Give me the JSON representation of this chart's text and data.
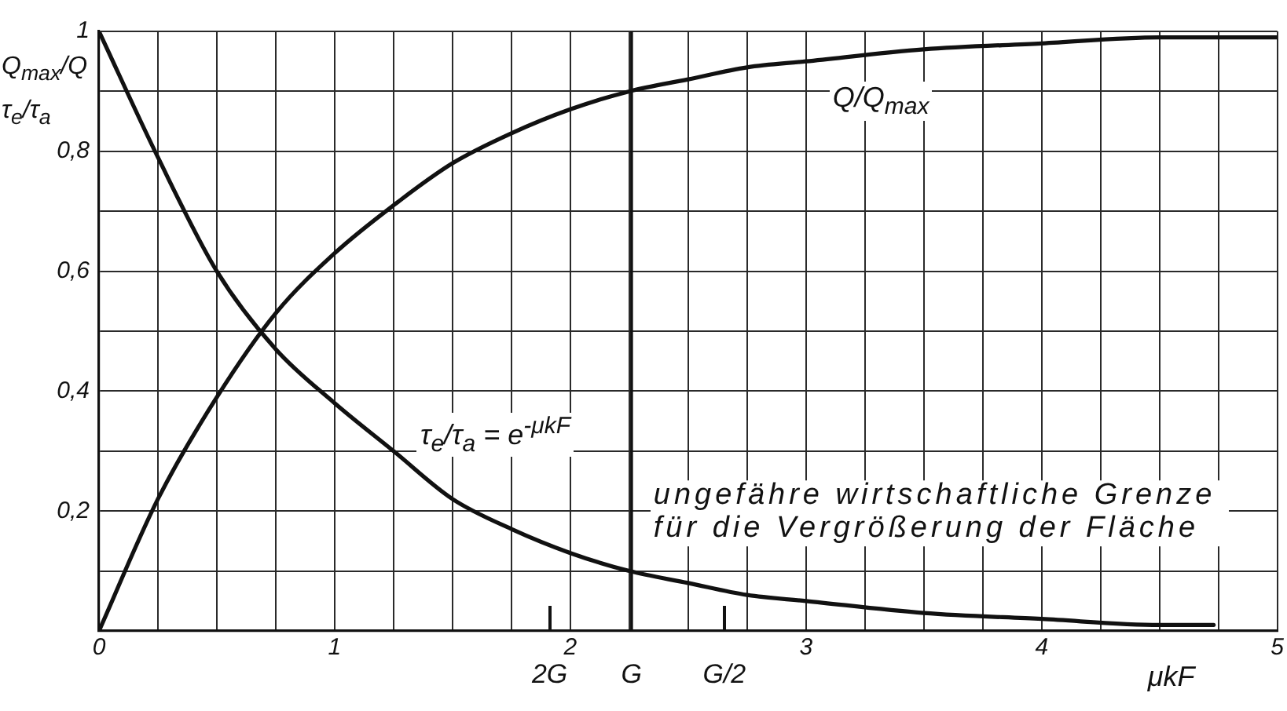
{
  "chart_data": {
    "type": "line",
    "series": [
      {
        "name": "Q/Q$_{max}$",
        "color": "#111111",
        "x": [
          0,
          0.25,
          0.5,
          0.75,
          1,
          1.25,
          1.5,
          1.75,
          2,
          2.25,
          2.5,
          2.75,
          3,
          3.5,
          4,
          4.5,
          5
        ],
        "values": [
          0,
          0.22,
          0.39,
          0.53,
          0.63,
          0.71,
          0.78,
          0.83,
          0.87,
          0.9,
          0.92,
          0.94,
          0.95,
          0.97,
          0.98,
          0.99,
          0.99
        ]
      },
      {
        "name": "τ$_{e}$/τ$_{a}$ = e$^{-μkF}$",
        "color": "#111111",
        "x": [
          0,
          0.25,
          0.5,
          0.75,
          1,
          1.25,
          1.5,
          1.75,
          2,
          2.25,
          2.5,
          2.75,
          3,
          3.5,
          4,
          4.5,
          4.73
        ],
        "values": [
          1,
          0.79,
          0.6,
          0.47,
          0.38,
          0.3,
          0.22,
          0.17,
          0.13,
          0.1,
          0.08,
          0.06,
          0.05,
          0.03,
          0.02,
          0.01,
          0.01
        ]
      }
    ],
    "xlim": [
      0,
      5
    ],
    "xticks": [
      0,
      {
        "value": 0.25,
        "label": null
      },
      {
        "value": 0.5,
        "label": null
      },
      {
        "value": 0.75,
        "label": null
      },
      1,
      {
        "value": 1.25,
        "label": null
      },
      {
        "value": 1.5,
        "label": null
      },
      {
        "value": 1.75,
        "label": null
      },
      2,
      {
        "value": 2.25,
        "label": null
      },
      {
        "value": 2.5,
        "label": null
      },
      {
        "value": 2.75,
        "label": null
      },
      3,
      {
        "value": 3.25,
        "label": null
      },
      {
        "value": 3.5,
        "label": null
      },
      {
        "value": 3.75,
        "label": null
      },
      4,
      {
        "value": 4.25,
        "label": null
      },
      {
        "value": 4.5,
        "label": null
      },
      {
        "value": 4.75,
        "label": null
      },
      5
    ],
    "ylim": [
      0,
      1
    ],
    "yticks": [
      {
        "value": 0,
        "label": null
      },
      {
        "value": 0.1,
        "label": null
      },
      {
        "value": 0.2,
        "label": "0,2"
      },
      {
        "value": 0.3,
        "label": null
      },
      {
        "value": 0.4,
        "label": "0,4"
      },
      {
        "value": 0.5,
        "label": null
      },
      {
        "value": 0.6,
        "label": "0,6"
      },
      {
        "value": 0.7,
        "label": null
      },
      {
        "value": 0.8,
        "label": "0,8"
      },
      {
        "value": 0.9,
        "label": null
      },
      1
    ],
    "xlabel": "μkF",
    "ylabel": "Q$_{max}$/Q τ$_{e}$/τ$_{a}$",
    "ref_lines": [
      {
        "axis": "x",
        "value": 2.26,
        "label": "G",
        "color": "#111111"
      }
    ],
    "annotations": [
      "2G",
      "G/2",
      "ungefähre wirtschaftliche Grenze für die Vergrößerung der Fläche"
    ],
    "grid": true
  }
}
